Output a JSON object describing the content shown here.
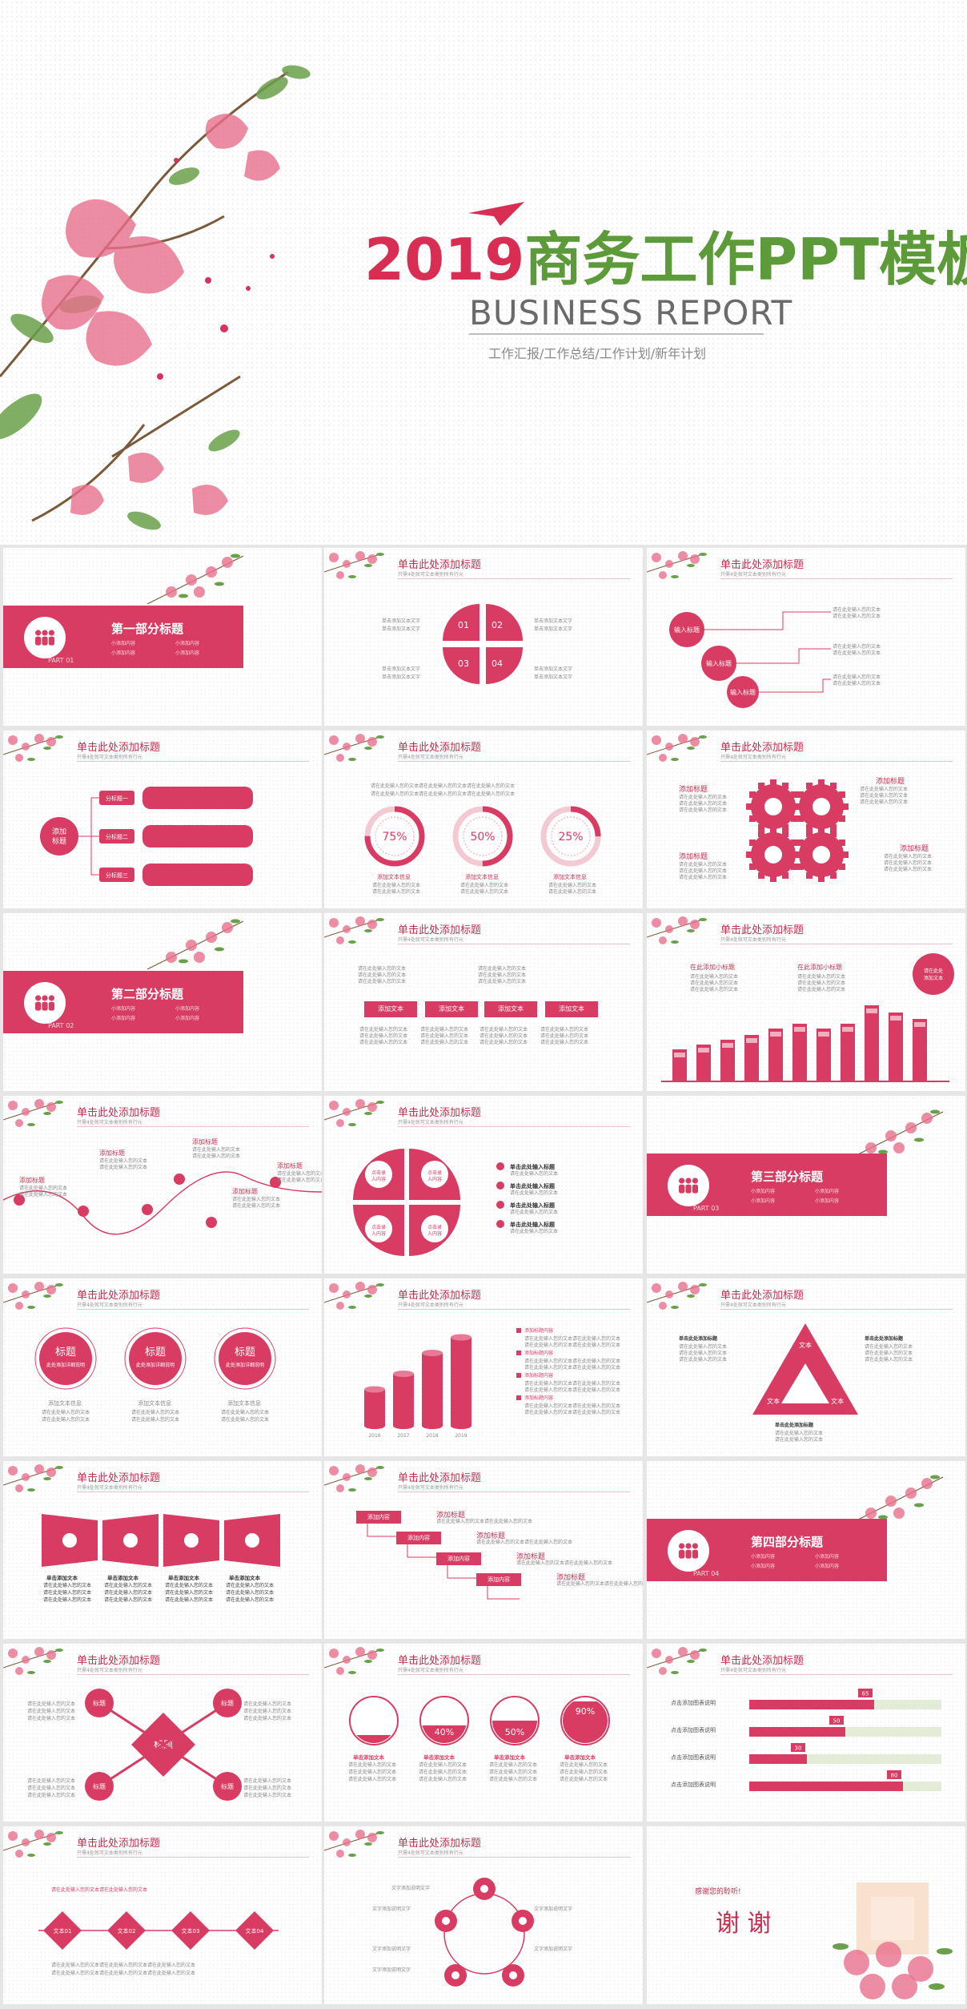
{
  "cover": {
    "year": "2019",
    "title_rest": "商务工作PPT模板",
    "subtitle": "BUSINESS REPORT",
    "tagline": "工作汇报/工作总结/工作计划/新年计划"
  },
  "common": {
    "slide_title": "单击此处添加标题",
    "slide_subtitle": "只需4处就可文本类别所有行元",
    "click_add_title": "添加标题",
    "click_add_text": "添加文本",
    "placeholder_text": "请在此处输入您的文本"
  },
  "sections": [
    {
      "title": "第一部分标题",
      "part": "PART 01",
      "items": [
        "小添加内容",
        "小添加内容",
        "小添加内容",
        "小添加内容"
      ]
    },
    {
      "title": "第二部分标题",
      "part": "PART 02",
      "items": [
        "小添加内容",
        "小添加内容",
        "小添加内容",
        "小添加内容"
      ]
    },
    {
      "title": "第三部分标题",
      "part": "PART 03",
      "items": [
        "小添加内容",
        "小添加内容",
        "小添加内容",
        "小添加内容"
      ]
    },
    {
      "title": "第四部分标题",
      "part": "PART 04",
      "items": [
        "小添加内容",
        "小添加内容",
        "小添加内容",
        "小添加内容"
      ]
    }
  ],
  "slide_petals": {
    "labels": [
      "01",
      "02",
      "03",
      "04"
    ],
    "text": "单击添加文本文字"
  },
  "slide_input": {
    "labels": [
      "输入标题",
      "输入标题",
      "输入标题"
    ]
  },
  "slide_tree": {
    "center": "添加\n标题",
    "center_a": "添加",
    "center_b": "标题",
    "branches": [
      "分标题一",
      "分标题二",
      "分标题三"
    ]
  },
  "slide_percent": {
    "rings": [
      {
        "value": 0.75,
        "label": "75%",
        "caption": "添加文本信息"
      },
      {
        "value": 0.5,
        "label": "50%",
        "caption": "添加文本信息"
      },
      {
        "value": 0.25,
        "label": "25%",
        "caption": "添加文本信息"
      }
    ]
  },
  "slide_gears": {
    "labels": [
      "添加标题",
      "添加标题",
      "添加标题",
      "添加标题"
    ]
  },
  "slide_boxes": {
    "labels": [
      "添加文本",
      "添加文本",
      "添加文本",
      "添加文本"
    ]
  },
  "slide_bars": {
    "labels": [
      "在此添加小标题",
      "在此添加小标题"
    ],
    "bubble": "请在此处添加文本",
    "values": [
      0.4,
      0.46,
      0.52,
      0.58,
      0.66,
      0.72,
      0.66,
      0.72,
      0.95,
      0.86,
      0.78
    ]
  },
  "slide_wave": {
    "labels": [
      "添加标题",
      "添加标题",
      "添加标题",
      "添加标题",
      "添加标题"
    ]
  },
  "slide_leaf": {
    "leaves": [
      "点击录入内容",
      "点击录入内容",
      "点击录入内容",
      "点击录入内容"
    ],
    "list": [
      "单击此处输入标题",
      "单击此处输入标题",
      "单击此处输入标题",
      "单击此处输入标题"
    ]
  },
  "slide_three": {
    "circles": [
      {
        "title": "标题",
        "text": "此处添加详细说明"
      },
      {
        "title": "标题",
        "text": "此处添加详细说明"
      },
      {
        "title": "标题",
        "text": "此处添加详细说明"
      }
    ],
    "caption": "添加文本信息"
  },
  "slide_cylinders": {
    "chart_data": {
      "type": "bar",
      "categories": [
        "2016",
        "2017",
        "2018",
        "2019"
      ],
      "values": [
        35,
        50,
        70,
        85
      ]
    },
    "legend": "添加标题内容"
  },
  "slide_triangle": {
    "labels": [
      "文本",
      "文本",
      "文本"
    ],
    "side_titles": [
      "单击此处添加标题",
      "单击此处添加标题",
      "单击此处添加标题"
    ]
  },
  "slide_trapezoid": {
    "captions": [
      "单击添加文本",
      "单击添加文本",
      "单击添加文本",
      "单击添加文本"
    ]
  },
  "slide_steps": {
    "boxes": [
      "添加内容",
      "添加内容",
      "添加内容",
      "添加内容"
    ],
    "titles": [
      "添加标题",
      "添加标题",
      "添加标题",
      "添加标题"
    ]
  },
  "slide_cross": {
    "center": "标题",
    "corners": [
      "标题",
      "标题",
      "标题",
      "标题"
    ]
  },
  "slide_fill": {
    "circles": [
      {
        "value": 0.2,
        "label": "20%"
      },
      {
        "value": 0.4,
        "label": "40%"
      },
      {
        "value": 0.5,
        "label": "50%"
      },
      {
        "value": 0.9,
        "label": "90%"
      }
    ],
    "caption": "单击添加文本"
  },
  "slide_hbars": {
    "chart_data": {
      "type": "bar",
      "categories": [
        "点击添加图表说明",
        "点击添加图表说明",
        "点击添加图表说明",
        "点击添加图表说明"
      ],
      "values": [
        65,
        50,
        30,
        80
      ],
      "xlim": [
        0,
        100
      ]
    }
  },
  "slide_diamonds": {
    "labels": [
      "文本01",
      "文本02",
      "文本03",
      "文本04"
    ]
  },
  "slide_cycle": {
    "label": "文字添加说明文字"
  },
  "slide_thanks": {
    "small": "感谢您的聆听!",
    "big": "谢 谢"
  },
  "colors": {
    "accent": "#d83c62",
    "green": "#5c9a3a"
  }
}
